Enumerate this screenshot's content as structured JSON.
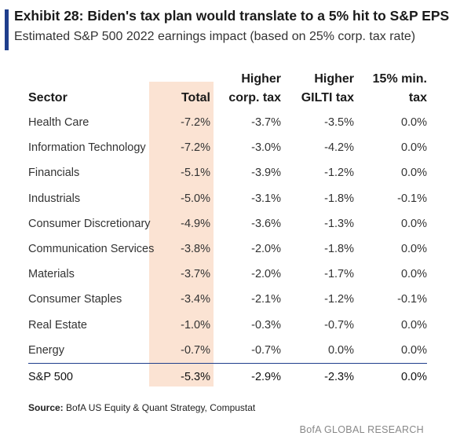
{
  "title": "Exhibit 28: Biden's tax plan would translate to a 5% hit to S&P EPS",
  "subtitle": "Estimated S&P 500 2022 earnings impact (based on 25% corp. tax rate)",
  "accent_color": "#1f3e8c",
  "highlight_color": "#fbe3d3",
  "chart_data": {
    "type": "table",
    "columns": [
      {
        "line1": "",
        "line2": "Sector"
      },
      {
        "line1": "",
        "line2": "Total"
      },
      {
        "line1": "Higher",
        "line2": "corp. tax"
      },
      {
        "line1": "Higher",
        "line2": "GILTI tax"
      },
      {
        "line1": "15% min.",
        "line2": "tax"
      }
    ],
    "rows": [
      [
        "Health Care",
        "-7.2%",
        "-3.7%",
        "-3.5%",
        "0.0%"
      ],
      [
        "Information Technology",
        "-7.2%",
        "-3.0%",
        "-4.2%",
        "0.0%"
      ],
      [
        "Financials",
        "-5.1%",
        "-3.9%",
        "-1.2%",
        "0.0%"
      ],
      [
        "Industrials",
        "-5.0%",
        "-3.1%",
        "-1.8%",
        "-0.1%"
      ],
      [
        "Consumer Discretionary",
        "-4.9%",
        "-3.6%",
        "-1.3%",
        "0.0%"
      ],
      [
        "Communication Services",
        "-3.8%",
        "-2.0%",
        "-1.8%",
        "0.0%"
      ],
      [
        "Materials",
        "-3.7%",
        "-2.0%",
        "-1.7%",
        "0.0%"
      ],
      [
        "Consumer Staples",
        "-3.4%",
        "-2.1%",
        "-1.2%",
        "-0.1%"
      ],
      [
        "Real Estate",
        "-1.0%",
        "-0.3%",
        "-0.7%",
        "0.0%"
      ],
      [
        "Energy",
        "-0.7%",
        "-0.7%",
        "0.0%",
        "0.0%"
      ]
    ],
    "total_row": [
      "S&P 500",
      "-5.3%",
      "-2.9%",
      "-2.3%",
      "0.0%"
    ]
  },
  "source_label": "Source:",
  "source_text": " BofA US Equity & Quant Strategy, Compustat",
  "brand": "BofA GLOBAL RESEARCH"
}
